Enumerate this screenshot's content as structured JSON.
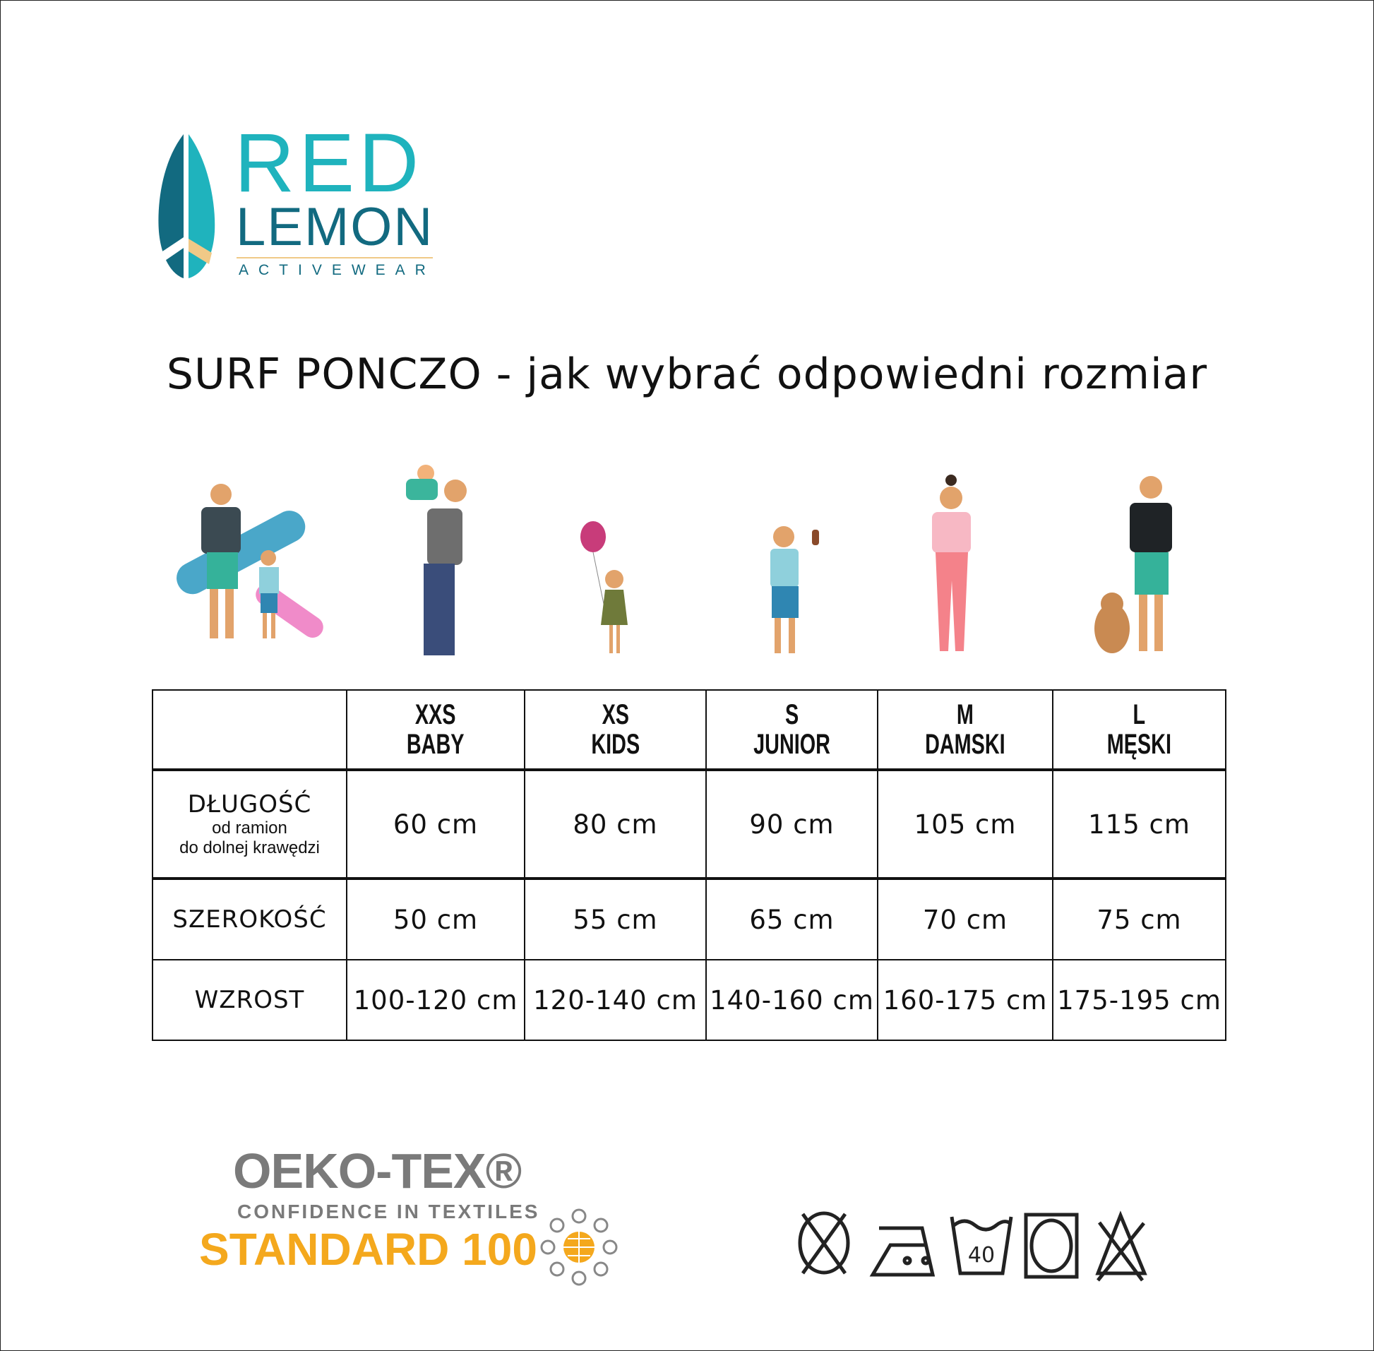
{
  "logo": {
    "line1": "RED",
    "line2": "LEMON",
    "line3": "ACTIVEWEAR",
    "colors": {
      "teal": "#1fb3bd",
      "dark_teal": "#126a80",
      "sand": "#f0c987"
    }
  },
  "title": "SURF PONCZO - jak wybrać odpowiedni rozmiar",
  "illustrations": [
    "man-with-surfboard-and-child",
    "man-lifting-baby",
    "girl-with-balloon",
    "boy-with-ice-cream",
    "woman",
    "man-with-dog"
  ],
  "table": {
    "columns": [
      {
        "size": "XXS",
        "group": "BABY"
      },
      {
        "size": "XS",
        "group": "KIDS"
      },
      {
        "size": "S",
        "group": "JUNIOR"
      },
      {
        "size": "M",
        "group": "DAMSKI"
      },
      {
        "size": "L",
        "group": "MĘSKI"
      }
    ],
    "rows": [
      {
        "label": "DŁUGOŚĆ",
        "sublabel1": "od ramion",
        "sublabel2": "do dolnej krawędzi",
        "values": [
          "60 cm",
          "80 cm",
          "90 cm",
          "105 cm",
          "115 cm"
        ]
      },
      {
        "label": "SZEROKOŚĆ",
        "values": [
          "50 cm",
          "55 cm",
          "65 cm",
          "70 cm",
          "75 cm"
        ]
      },
      {
        "label": "WZROST",
        "values": [
          "100-120 cm",
          "120-140 cm",
          "140-160 cm",
          "160-175 cm",
          "175-195 cm"
        ]
      }
    ]
  },
  "certification": {
    "name": "OEKO-TEX®",
    "tagline": "CONFIDENCE IN TEXTILES",
    "standard": "STANDARD 100",
    "colors": {
      "gray": "#7a7a7a",
      "orange": "#f4a81d"
    }
  },
  "care_symbols": [
    {
      "icon": "do-not-tumble-dry-icon"
    },
    {
      "icon": "iron-two-dots-icon"
    },
    {
      "icon": "wash-40-icon",
      "text": "40"
    },
    {
      "icon": "dry-clean-icon"
    },
    {
      "icon": "do-not-bleach-icon"
    }
  ]
}
